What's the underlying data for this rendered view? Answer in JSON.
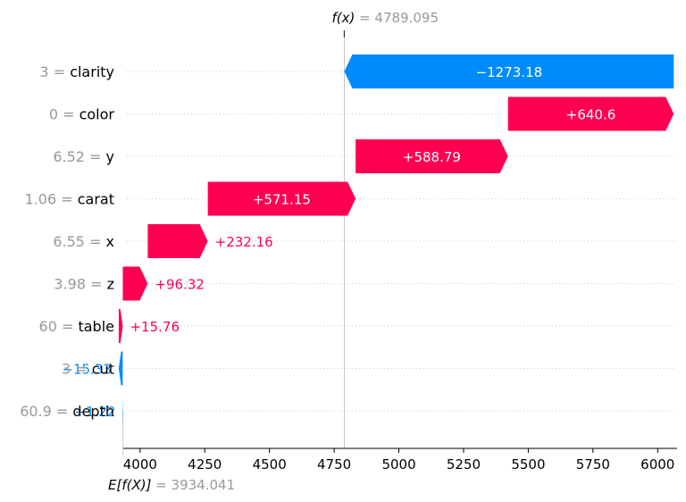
{
  "chart_data": {
    "type": "waterfall",
    "top_label": {
      "func": "f(x)",
      "eq": " = ",
      "value": "4789.095"
    },
    "bottom_label": {
      "func": "E[f(X)]",
      "eq": " = ",
      "value": "3934.041"
    },
    "base_value": 3934.041,
    "output_value": 4789.095,
    "xlim": [
      3935,
      6075
    ],
    "x_ticks": [
      4000,
      4250,
      4500,
      4750,
      5000,
      5250,
      5500,
      5750,
      6000
    ],
    "x_tick_labels": [
      "4000",
      "4250",
      "4500",
      "4750",
      "5000",
      "5250",
      "5500",
      "5750",
      "6000"
    ],
    "features": [
      {
        "value_label": "3",
        "eq": " = ",
        "name": "clarity",
        "contribution": -1273.18,
        "label": "−1273.18"
      },
      {
        "value_label": "0",
        "eq": " = ",
        "name": "color",
        "contribution": 640.6,
        "label": "+640.6"
      },
      {
        "value_label": "6.52",
        "eq": " = ",
        "name": "y",
        "contribution": 588.79,
        "label": "+588.79"
      },
      {
        "value_label": "1.06",
        "eq": " = ",
        "name": "carat",
        "contribution": 571.15,
        "label": "+571.15"
      },
      {
        "value_label": "6.55",
        "eq": " = ",
        "name": "x",
        "contribution": 232.16,
        "label": "+232.16"
      },
      {
        "value_label": "3.98",
        "eq": " = ",
        "name": "z",
        "contribution": 96.32,
        "label": "+96.32"
      },
      {
        "value_label": "60",
        "eq": " = ",
        "name": "table",
        "contribution": 15.76,
        "label": "+15.76"
      },
      {
        "value_label": "3",
        "eq": " = ",
        "name": "cut",
        "contribution": -15.33,
        "label": "−15.33"
      },
      {
        "value_label": "60.9",
        "eq": " = ",
        "name": "depth",
        "contribution": -1.22,
        "label": "−1.22"
      }
    ],
    "colors": {
      "positive": "#ff0051",
      "negative": "#008bfb",
      "muted": "#999999",
      "text": "#000000"
    }
  }
}
